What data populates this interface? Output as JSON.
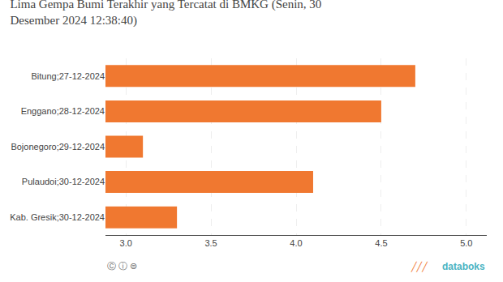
{
  "chart_data": {
    "type": "bar",
    "orientation": "horizontal",
    "title": "Lima Gempa Bumi Terakhir yang Tercatat di BMKG (Senin, 30\nDesember 2024 12:38:40)",
    "categories": [
      "Kab. Gresik;30-12-2024",
      "Pulaudoi;30-12-2024",
      "Bojonegoro;29-12-2024",
      "Enggano;28-12-2024",
      "Bitung;27-12-2024"
    ],
    "values": [
      3.3,
      4.1,
      3.1,
      4.5,
      4.7
    ],
    "color": "#F07830",
    "xlim": [
      2.88,
      5.12
    ],
    "xticks": [
      {
        "value": 3.0,
        "label": "3.0"
      },
      3.5,
      {
        "value": 4.0,
        "label": "4.0"
      },
      4.5,
      {
        "value": 5.0,
        "label": "5.0"
      }
    ],
    "grid": true,
    "annotations": [
      {
        "text": "databoks",
        "color": "#4ab3c2"
      },
      {
        "text": "╱╱╱",
        "color": "#F07830"
      },
      {
        "text": "Ⓒ ⓘ ⊜",
        "color": "#666666"
      }
    ]
  }
}
